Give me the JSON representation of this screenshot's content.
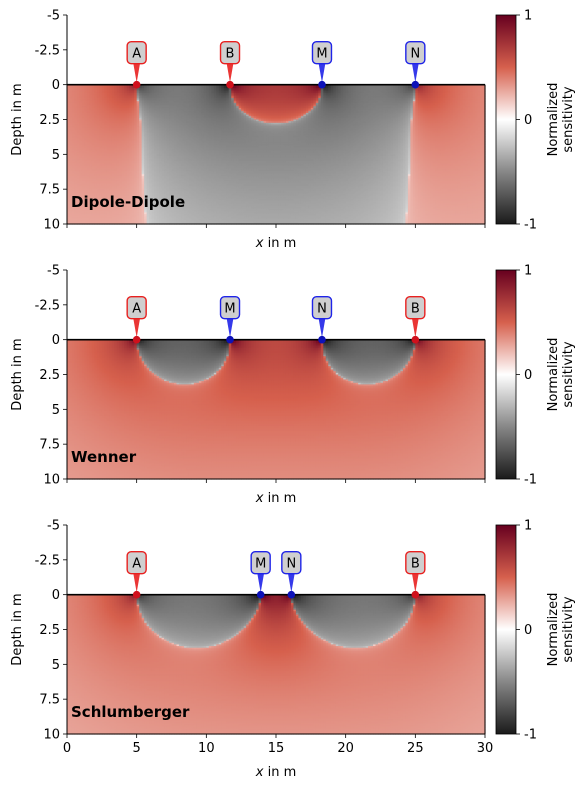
{
  "colorbar": {
    "label_line1": "Normalized",
    "label_line2": "sensitivity",
    "ticks": [
      "1",
      "0",
      "-1"
    ],
    "colors": {
      "positive": "#67001f",
      "mid_red": "#d6604d",
      "center": "#ffffff",
      "mid_gray": "#878787",
      "negative": "#1a1a1a"
    }
  },
  "chart_data": [
    {
      "type": "heatmap",
      "title": "Dipole-Dipole",
      "xlabel_var": "x",
      "xlabel_rest": " in m",
      "ylabel": "Depth in m",
      "xlim": [
        0,
        30
      ],
      "ylim": [
        10,
        -5
      ],
      "yticks": [
        "-5",
        "-2.5",
        "0",
        "2.5",
        "5",
        "7.5",
        "10"
      ],
      "ytick_values": [
        -5,
        -2.5,
        0,
        2.5,
        5,
        7.5,
        10
      ],
      "xticks": [],
      "xtick_values": [
        0,
        5,
        10,
        15,
        20,
        25,
        30
      ],
      "electrodes": [
        {
          "label": "A",
          "x": 5,
          "role": "current"
        },
        {
          "label": "B",
          "x": 11.7,
          "role": "current"
        },
        {
          "label": "M",
          "x": 18.3,
          "role": "potential"
        },
        {
          "label": "N",
          "x": 25,
          "role": "potential"
        }
      ]
    },
    {
      "type": "heatmap",
      "title": "Wenner",
      "xlabel_var": "x",
      "xlabel_rest": " in m",
      "ylabel": "Depth in m",
      "xlim": [
        0,
        30
      ],
      "ylim": [
        10,
        -5
      ],
      "yticks": [
        "-5",
        "-2.5",
        "0",
        "2.5",
        "5",
        "7.5",
        "10"
      ],
      "ytick_values": [
        -5,
        -2.5,
        0,
        2.5,
        5,
        7.5,
        10
      ],
      "xticks": [],
      "xtick_values": [
        0,
        5,
        10,
        15,
        20,
        25,
        30
      ],
      "electrodes": [
        {
          "label": "A",
          "x": 5,
          "role": "current"
        },
        {
          "label": "M",
          "x": 11.7,
          "role": "potential"
        },
        {
          "label": "N",
          "x": 18.3,
          "role": "potential"
        },
        {
          "label": "B",
          "x": 25,
          "role": "current"
        }
      ]
    },
    {
      "type": "heatmap",
      "title": "Schlumberger",
      "xlabel_var": "x",
      "xlabel_rest": " in m",
      "ylabel": "Depth in m",
      "xlim": [
        0,
        30
      ],
      "ylim": [
        10,
        -5
      ],
      "yticks": [
        "-5",
        "-2.5",
        "0",
        "2.5",
        "5",
        "7.5",
        "10"
      ],
      "ytick_values": [
        -5,
        -2.5,
        0,
        2.5,
        5,
        7.5,
        10
      ],
      "xticks": [
        "0",
        "5",
        "10",
        "15",
        "20",
        "25",
        "30"
      ],
      "xtick_values": [
        0,
        5,
        10,
        15,
        20,
        25,
        30
      ],
      "electrodes": [
        {
          "label": "A",
          "x": 5,
          "role": "current"
        },
        {
          "label": "M",
          "x": 13.9,
          "role": "potential"
        },
        {
          "label": "N",
          "x": 16.1,
          "role": "potential"
        },
        {
          "label": "B",
          "x": 25,
          "role": "current"
        }
      ]
    }
  ]
}
